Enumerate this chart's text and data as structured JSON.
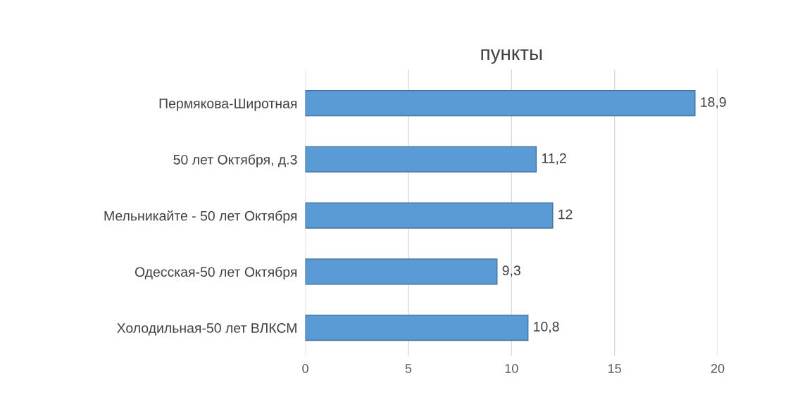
{
  "chart_data": {
    "type": "bar",
    "orientation": "horizontal",
    "title": "пункты",
    "categories": [
      "Пермякова-Широтная",
      "50 лет Октября, д.3",
      "Мельникайте - 50 лет Октября",
      "Одесская-50 лет Октября",
      "Холодильная-50 лет ВЛКСМ"
    ],
    "values": [
      18.9,
      11.2,
      12,
      9.3,
      10.8
    ],
    "value_labels": [
      "18,9",
      "11,2",
      "12",
      "9,3",
      "10,8"
    ],
    "color": "#5b9bd5",
    "xlim": [
      0,
      20
    ],
    "xticks": [
      0,
      5,
      10,
      15,
      20
    ],
    "grid": "x",
    "legend": false
  }
}
